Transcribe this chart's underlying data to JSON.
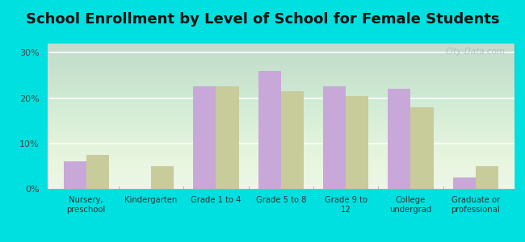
{
  "title": "School Enrollment by Level of School for Female Students",
  "categories": [
    "Nursery,\npreschool",
    "Kindergarten",
    "Grade 1 to 4",
    "Grade 5 to 8",
    "Grade 9 to\n12",
    "College\nundergrad",
    "Graduate or\nprofessional"
  ],
  "allamuchy": [
    6.0,
    0.0,
    22.5,
    26.0,
    22.5,
    22.0,
    2.5
  ],
  "nj": [
    7.5,
    5.0,
    22.5,
    21.5,
    20.5,
    18.0,
    5.0
  ],
  "allamuchy_color": "#c8a8d8",
  "nj_color": "#c8cc9a",
  "background_color": "#00e0e0",
  "plot_bg": "#e8f5e8",
  "ylim": [
    0,
    32
  ],
  "yticks": [
    0,
    10,
    20,
    30
  ],
  "ytick_labels": [
    "0%",
    "10%",
    "20%",
    "30%"
  ],
  "bar_width": 0.35,
  "title_fontsize": 13,
  "watermark": "City-Data.com"
}
